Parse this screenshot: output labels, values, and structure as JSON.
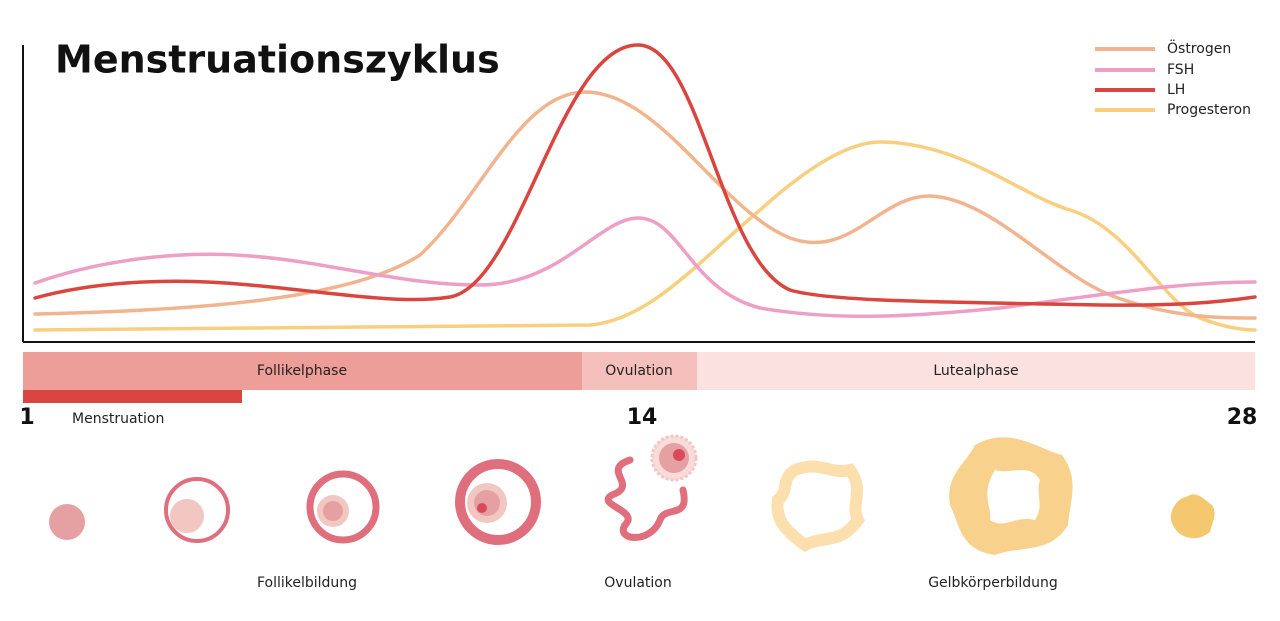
{
  "title": "Menstruationszyklus",
  "legend": [
    {
      "name": "Östrogen"
    },
    {
      "name": "FSH"
    },
    {
      "name": "LH"
    },
    {
      "name": "Progesteron"
    }
  ],
  "phases": [
    "Follikelphase",
    "Ovulation",
    "Lutealphase"
  ],
  "menstruation": "Menstruation",
  "days": {
    "start": "1",
    "ovulation": "14",
    "end": "28"
  },
  "stages": [
    "Follikelbildung",
    "Ovulation",
    "Gelbkörperbildung"
  ]
}
